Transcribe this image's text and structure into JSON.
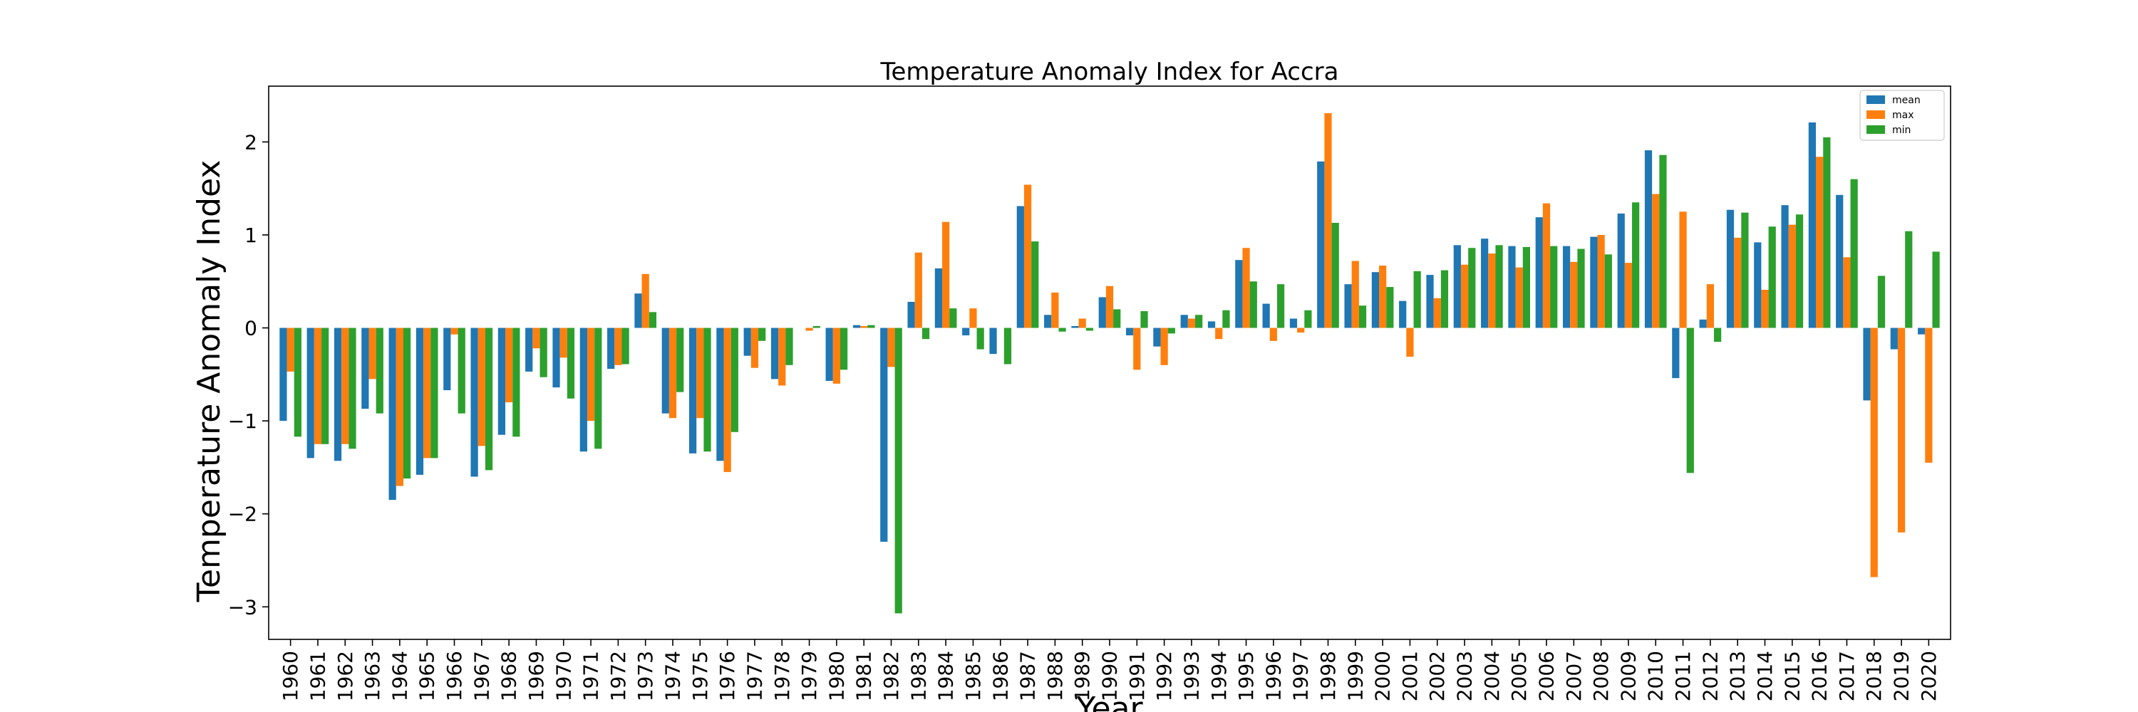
{
  "chart_data": {
    "type": "bar",
    "title": "Temperature Anomaly Index for Accra",
    "xlabel": "Year",
    "ylabel": "Temperature Anomaly Index",
    "ylim": [
      -3.35,
      2.6
    ],
    "yticks": [
      -3,
      -2,
      -1,
      0,
      1,
      2
    ],
    "ytick_labels": [
      "−3",
      "−2",
      "−1",
      "0",
      "1",
      "2"
    ],
    "grid": false,
    "legend_position": "top-right",
    "categories": [
      "1960",
      "1961",
      "1962",
      "1963",
      "1964",
      "1965",
      "1966",
      "1967",
      "1968",
      "1969",
      "1970",
      "1971",
      "1972",
      "1973",
      "1974",
      "1975",
      "1976",
      "1977",
      "1978",
      "1979",
      "1980",
      "1981",
      "1982",
      "1983",
      "1984",
      "1985",
      "1986",
      "1987",
      "1988",
      "1989",
      "1990",
      "1991",
      "1992",
      "1993",
      "1994",
      "1995",
      "1996",
      "1997",
      "1998",
      "1999",
      "2000",
      "2001",
      "2002",
      "2003",
      "2004",
      "2005",
      "2006",
      "2007",
      "2008",
      "2009",
      "2010",
      "2011",
      "2012",
      "2013",
      "2014",
      "2015",
      "2016",
      "2017",
      "2018",
      "2019",
      "2020"
    ],
    "series": [
      {
        "name": "mean",
        "color": "#1f77b4",
        "values": [
          -1.0,
          -1.4,
          -1.43,
          -0.87,
          -1.85,
          -1.58,
          -0.67,
          -1.6,
          -1.15,
          -0.47,
          -0.64,
          -1.33,
          -0.44,
          0.37,
          -0.92,
          -1.35,
          -1.43,
          -0.3,
          -0.55,
          0.0,
          -0.57,
          0.03,
          -2.3,
          0.28,
          0.64,
          -0.08,
          -0.28,
          1.31,
          0.14,
          0.02,
          0.33,
          -0.08,
          -0.2,
          0.14,
          0.07,
          0.73,
          0.26,
          0.1,
          1.79,
          0.47,
          0.6,
          0.29,
          0.57,
          0.89,
          0.96,
          0.88,
          1.19,
          0.88,
          0.98,
          1.23,
          1.91,
          -0.54,
          0.09,
          1.27,
          0.92,
          1.32,
          2.21,
          1.43,
          -0.78,
          -0.23,
          -0.07
        ]
      },
      {
        "name": "max",
        "color": "#ff7f0e",
        "values": [
          -0.47,
          -1.25,
          -1.25,
          -0.55,
          -1.7,
          -1.4,
          -0.07,
          -1.27,
          -0.8,
          -0.22,
          -0.32,
          -1.0,
          -0.4,
          0.58,
          -0.97,
          -0.97,
          -1.55,
          -0.43,
          -0.62,
          -0.03,
          -0.6,
          0.02,
          -0.42,
          0.81,
          1.14,
          0.21,
          0.0,
          1.54,
          0.38,
          0.1,
          0.45,
          -0.45,
          -0.4,
          0.1,
          -0.12,
          0.86,
          -0.14,
          -0.05,
          2.31,
          0.72,
          0.67,
          -0.31,
          0.32,
          0.68,
          0.8,
          0.65,
          1.34,
          0.71,
          1.0,
          0.7,
          1.44,
          1.25,
          0.47,
          0.97,
          0.41,
          1.11,
          1.84,
          0.76,
          -2.68,
          -2.2,
          -1.45
        ]
      },
      {
        "name": "min",
        "color": "#2ca02c",
        "values": [
          -1.17,
          -1.25,
          -1.3,
          -0.92,
          -1.62,
          -1.4,
          -0.92,
          -1.53,
          -1.17,
          -0.53,
          -0.76,
          -1.3,
          -0.39,
          0.17,
          -0.69,
          -1.33,
          -1.12,
          -0.14,
          -0.4,
          0.02,
          -0.45,
          0.03,
          -3.07,
          -0.12,
          0.21,
          -0.23,
          -0.39,
          0.93,
          -0.04,
          -0.03,
          0.2,
          0.18,
          -0.06,
          0.14,
          0.19,
          0.5,
          0.47,
          0.19,
          1.13,
          0.24,
          0.44,
          0.61,
          0.62,
          0.86,
          0.89,
          0.87,
          0.88,
          0.85,
          0.79,
          1.35,
          1.86,
          -1.56,
          -0.15,
          1.24,
          1.09,
          1.22,
          2.05,
          1.6,
          0.56,
          1.04,
          0.82
        ]
      }
    ]
  }
}
